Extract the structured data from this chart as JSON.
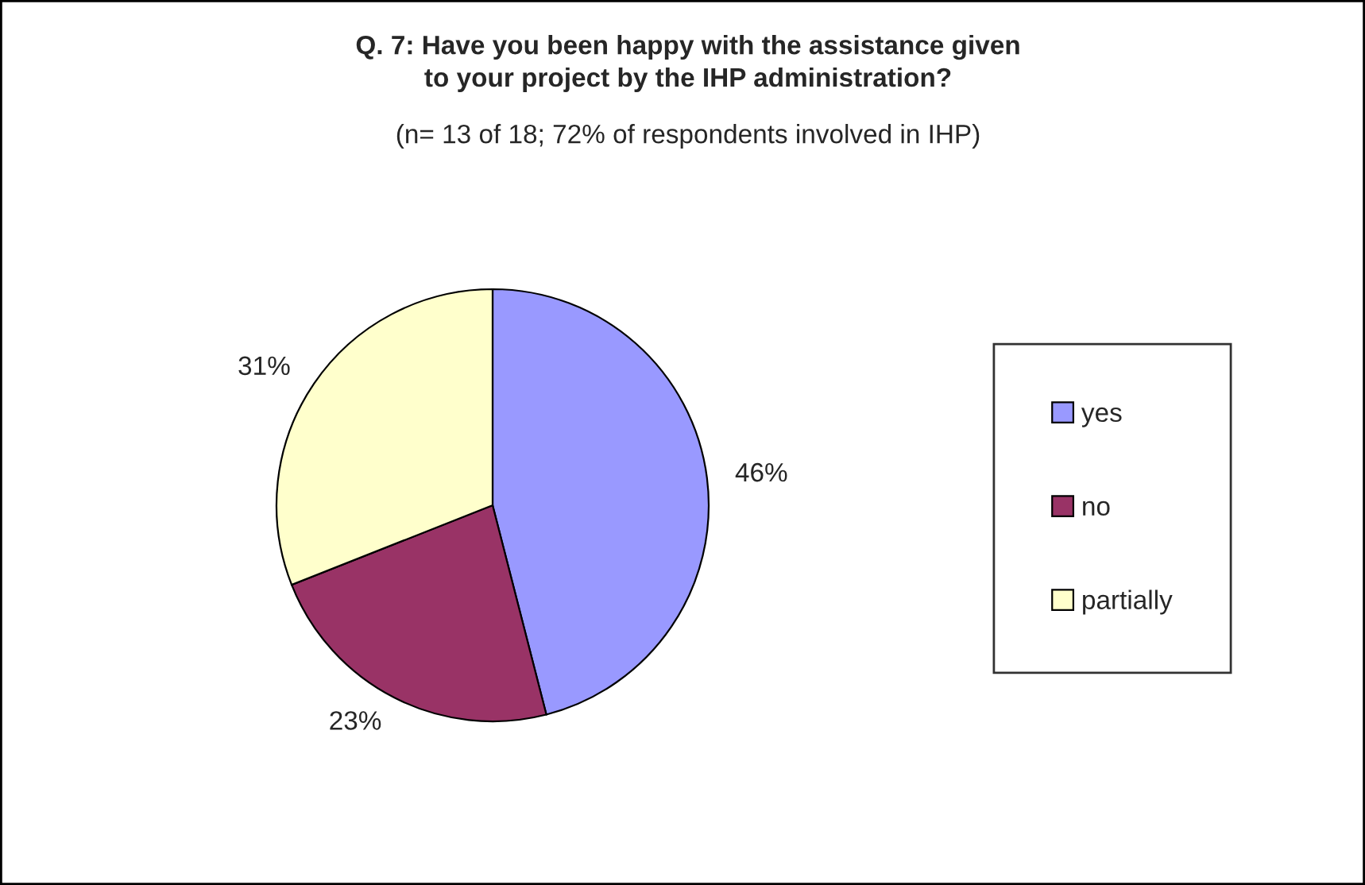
{
  "chart_data": {
    "type": "pie",
    "title": "Q. 7: Have you been happy with the assistance given\nto your project by the IHP administration?",
    "subtitle": "(n= 13 of 18; 72% of respondents involved in IHP)",
    "categories": [
      "yes",
      "no",
      "partially"
    ],
    "values": [
      46,
      23,
      31
    ],
    "colors": [
      "#9999ff",
      "#993366",
      "#ffffcc"
    ],
    "value_labels": [
      "46%",
      "23%",
      "31%"
    ],
    "legend": "right"
  }
}
